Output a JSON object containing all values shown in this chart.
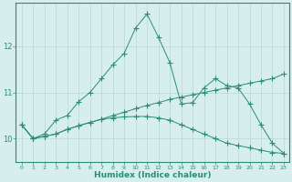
{
  "xlabel": "Humidex (Indice chaleur)",
  "x": [
    0,
    1,
    2,
    3,
    4,
    5,
    6,
    7,
    8,
    9,
    10,
    11,
    12,
    13,
    14,
    15,
    16,
    17,
    18,
    19,
    20,
    21,
    22,
    23
  ],
  "line1": [
    10.3,
    10.0,
    10.05,
    10.1,
    10.2,
    10.28,
    10.35,
    10.42,
    10.5,
    10.57,
    10.65,
    10.72,
    10.78,
    10.85,
    10.9,
    10.95,
    11.0,
    11.05,
    11.1,
    11.15,
    11.2,
    11.25,
    11.3,
    11.4
  ],
  "line2": [
    10.3,
    10.0,
    10.05,
    10.1,
    10.2,
    10.28,
    10.35,
    10.42,
    10.45,
    10.47,
    10.48,
    10.48,
    10.45,
    10.4,
    10.3,
    10.2,
    10.1,
    10.0,
    9.9,
    9.85,
    9.8,
    9.75,
    9.7,
    9.68
  ],
  "line3": [
    10.3,
    10.0,
    10.1,
    10.4,
    10.5,
    10.8,
    11.0,
    11.3,
    11.6,
    11.85,
    12.4,
    12.7,
    12.2,
    11.65,
    10.75,
    10.78,
    11.1,
    11.3,
    11.15,
    11.1,
    10.75,
    10.3,
    9.9,
    9.68
  ],
  "line_color": "#2e8b7a",
  "bg_color": "#d6eeec",
  "grid_color": "#b8d8d5",
  "yticks": [
    10,
    11,
    12
  ],
  "ylim": [
    9.5,
    12.95
  ],
  "xlim": [
    -0.5,
    23.5
  ]
}
